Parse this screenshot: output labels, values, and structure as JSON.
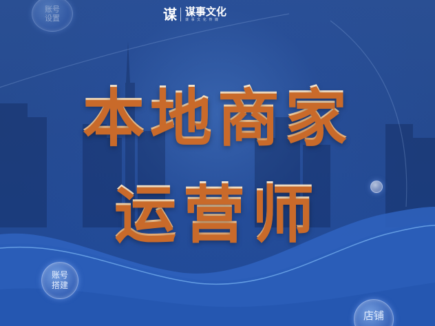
{
  "brand": {
    "logo": "谋",
    "name": "谋事文化",
    "subtitle": "谋 事 文 化 传 媒"
  },
  "title": {
    "line1": "本地商家",
    "line2": "运营师"
  },
  "bubbles": {
    "account_setup_top": "账号\n设置",
    "account_setup_bottom": "账号\n搭建",
    "store": "店铺"
  },
  "colors": {
    "background": "#254a90",
    "title_text": "#fbd6a6",
    "title_shadow": "#c96a2a",
    "brand_accent": "#f5a34a"
  }
}
